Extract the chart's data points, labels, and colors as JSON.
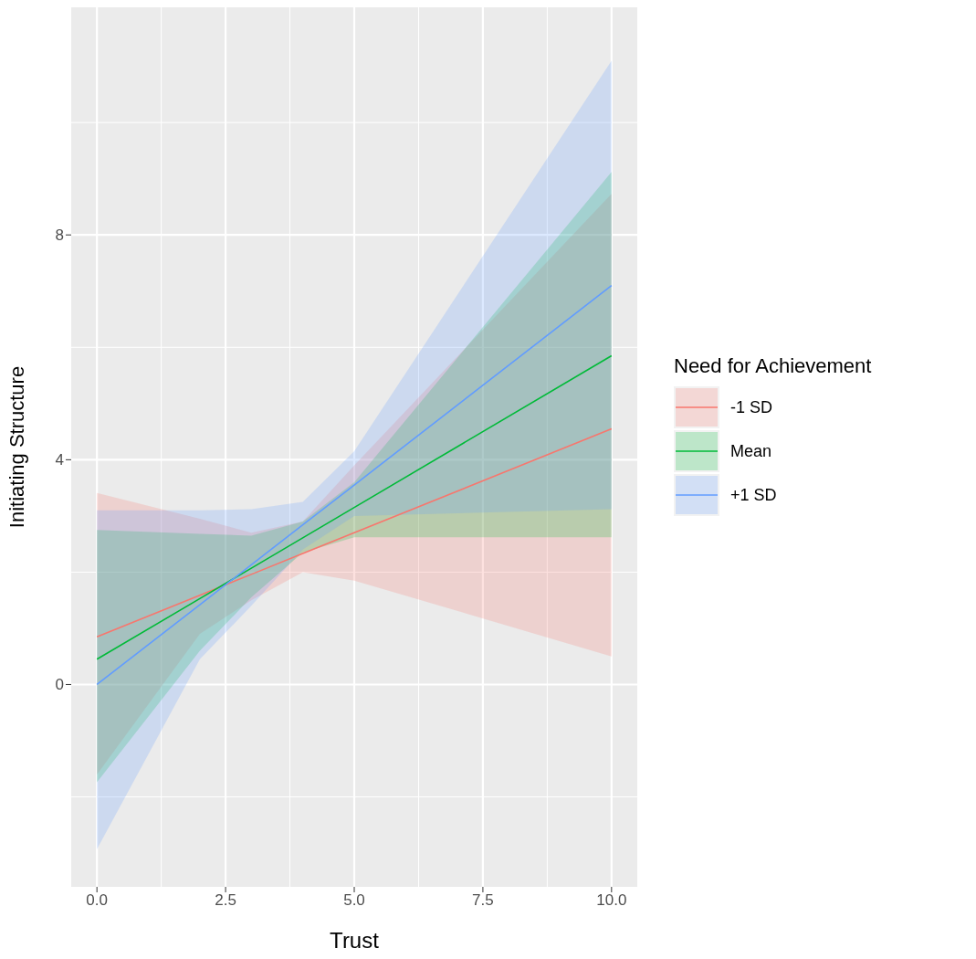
{
  "chart_data": {
    "type": "line",
    "xlabel": "Trust",
    "ylabel": "Initiating Structure",
    "legend_title": "Need for Achievement",
    "x": [
      0,
      2,
      3,
      4,
      5,
      10
    ],
    "series": [
      {
        "name": "-1 SD",
        "color": "#f8766d",
        "values": [
          0.85,
          1.59,
          1.96,
          2.33,
          2.7,
          4.55
        ],
        "lower": [
          -1.6,
          0.9,
          1.5,
          2.0,
          1.85,
          0.5
        ],
        "upper": [
          3.41,
          2.95,
          2.7,
          2.9,
          3.9,
          8.73
        ]
      },
      {
        "name": "Mean",
        "color": "#00ba38",
        "values": [
          0.45,
          1.53,
          2.07,
          2.61,
          3.15,
          5.85
        ],
        "lower": [
          -1.74,
          0.6,
          1.55,
          2.35,
          2.62,
          2.62
        ],
        "upper": [
          2.75,
          2.68,
          2.65,
          2.9,
          3.6,
          9.12
        ]
      },
      {
        "name": "+1 SD",
        "color": "#619cff",
        "values": [
          0.0,
          1.42,
          2.13,
          2.84,
          3.55,
          7.1
        ],
        "lower": [
          -2.93,
          0.45,
          1.4,
          2.4,
          3.0,
          3.12
        ],
        "upper": [
          3.1,
          3.1,
          3.12,
          3.25,
          4.15,
          11.1
        ]
      }
    ],
    "xlim": [
      -0.5,
      10.5
    ],
    "xticks": [
      {
        "value": 0,
        "label": "0.0"
      },
      {
        "value": 2.5,
        "label": "2.5"
      },
      {
        "value": 5,
        "label": "5.0"
      },
      {
        "value": 7.5,
        "label": "7.5"
      },
      {
        "value": 10,
        "label": "10.0"
      }
    ],
    "ylim": [
      -3.6,
      12.05
    ],
    "yticks": [
      0,
      4,
      8
    ],
    "grid": true,
    "legend": "right"
  }
}
